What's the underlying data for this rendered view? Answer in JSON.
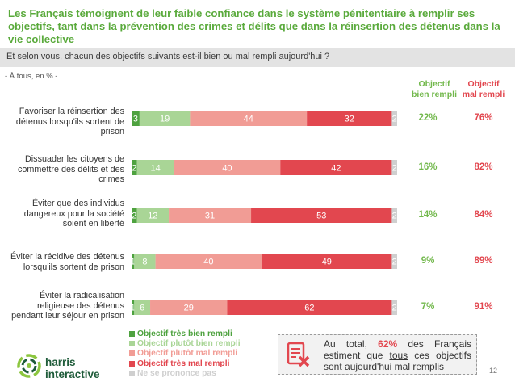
{
  "title": "Les Français témoignent de leur faible confiance dans le système pénitentiaire à remplir ses objectifs, tant dans la prévention des crimes et délits que dans la réinsertion des détenus dans la vie collective",
  "question": "Et selon vous, chacun des objectifs suivants est-il bien ou mal rempli aujourd'hui ?",
  "base_note": "- À tous, en % -",
  "columns": {
    "good_header": [
      "Objectif",
      "bien rempli"
    ],
    "bad_header": [
      "Objectif",
      "mal rempli"
    ]
  },
  "colors": {
    "tres_bien": "#4ea23f",
    "plutot_bien": "#a9d596",
    "plutot_mal": "#f19c95",
    "tres_mal": "#e2474f",
    "nsp": "#cfcfcf",
    "title": "#5aaa3c"
  },
  "chart_data": {
    "type": "bar",
    "orientation": "horizontal",
    "stacked": true,
    "categories": [
      [
        "Favoriser la réinsertion des",
        "détenus lorsqu'ils sortent de",
        "prison"
      ],
      [
        "Dissuader les citoyens de",
        "commettre des délits et des",
        "crimes"
      ],
      [
        "Éviter que des individus",
        "dangereux pour la société",
        "soient en liberté"
      ],
      [
        "Éviter la récidive des détenus",
        "lorsqu'ils sortent de prison"
      ],
      [
        "Éviter la radicalisation",
        "religieuse des détenus",
        "pendant leur séjour en prison"
      ]
    ],
    "series": [
      {
        "name": "Objectif très bien rempli",
        "values": [
          3,
          2,
          2,
          1,
          1
        ]
      },
      {
        "name": "Objectif plutôt bien rempli",
        "values": [
          19,
          14,
          12,
          8,
          6
        ]
      },
      {
        "name": "Objectif plutôt mal rempli",
        "values": [
          44,
          40,
          31,
          40,
          29
        ]
      },
      {
        "name": "Objectif très mal rempli",
        "values": [
          32,
          42,
          53,
          49,
          62
        ]
      },
      {
        "name": "Ne se prononce pas",
        "values": [
          2,
          2,
          2,
          2,
          2
        ]
      }
    ],
    "value_labels": [
      [
        "3",
        "19",
        "44",
        "32",
        "2"
      ],
      [
        "2",
        "14",
        "40",
        "42",
        "2"
      ],
      [
        "2",
        "12",
        "31",
        "53",
        "2"
      ],
      [
        "1",
        "8",
        "40",
        "49",
        "2"
      ],
      [
        "1",
        "6",
        "29",
        "62",
        "2"
      ]
    ],
    "bien_rempli": [
      "22%",
      "16%",
      "14%",
      "9%",
      "7%"
    ],
    "mal_rempli": [
      "76%",
      "82%",
      "84%",
      "89%",
      "91%"
    ],
    "xlim": [
      0,
      100
    ],
    "legend_position": "bottom-left"
  },
  "callout": {
    "before": "Au total,",
    "highlight": "62%",
    "middle": "des Français estiment que",
    "underlined": "tous",
    "after": "ces objectifs sont aujourd'hui mal remplis"
  },
  "logo": {
    "line1": "harris",
    "line2": "interactive"
  },
  "page_number": "12"
}
